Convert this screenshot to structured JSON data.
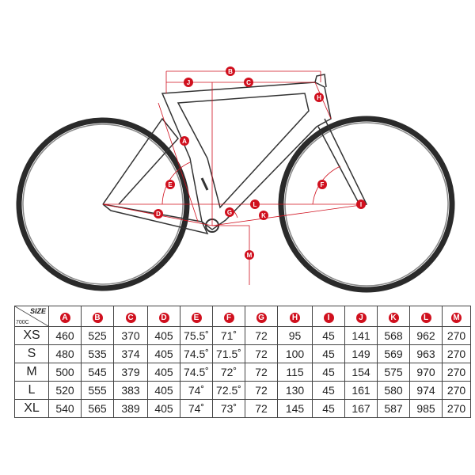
{
  "colors": {
    "accent": "#d0101e",
    "frame": "#333333",
    "tire": "#2a2a2a"
  },
  "diagram": {
    "labels": [
      "A",
      "B",
      "C",
      "D",
      "E",
      "F",
      "G",
      "H",
      "I",
      "J",
      "K",
      "L",
      "M"
    ]
  },
  "table": {
    "size_label": "SIZE",
    "wheel_label": "700C",
    "columns": [
      "A",
      "B",
      "C",
      "D",
      "E",
      "F",
      "G",
      "H",
      "I",
      "J",
      "K",
      "L",
      "M"
    ],
    "rows": [
      {
        "size": "XS",
        "values": [
          "460",
          "525",
          "370",
          "405",
          "75.5˚",
          "71˚",
          "72",
          "95",
          "45",
          "141",
          "568",
          "962",
          "270"
        ]
      },
      {
        "size": "S",
        "values": [
          "480",
          "535",
          "374",
          "405",
          "74.5˚",
          "71.5˚",
          "72",
          "100",
          "45",
          "149",
          "569",
          "963",
          "270"
        ]
      },
      {
        "size": "M",
        "values": [
          "500",
          "545",
          "379",
          "405",
          "74.5˚",
          "72˚",
          "72",
          "115",
          "45",
          "154",
          "575",
          "970",
          "270"
        ]
      },
      {
        "size": "L",
        "values": [
          "520",
          "555",
          "383",
          "405",
          "74˚",
          "72.5˚",
          "72",
          "130",
          "45",
          "161",
          "580",
          "974",
          "270"
        ]
      },
      {
        "size": "XL",
        "values": [
          "540",
          "565",
          "389",
          "405",
          "74˚",
          "73˚",
          "72",
          "145",
          "45",
          "167",
          "587",
          "985",
          "270"
        ]
      }
    ]
  }
}
